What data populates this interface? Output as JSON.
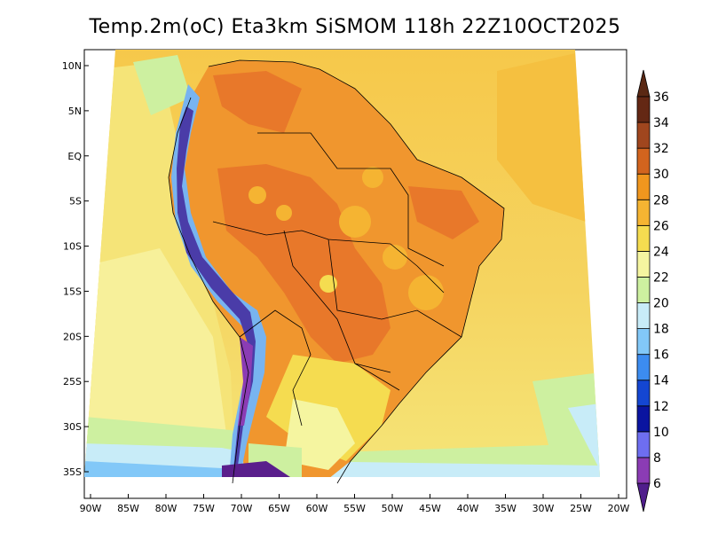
{
  "title": "Temp.2m(oC) Eta3km SiSMOM 118h 22Z10OCT2025",
  "variable": "Temp.2m",
  "units": "oC",
  "lat_ticks": [
    {
      "value": 10,
      "label": "10N"
    },
    {
      "value": 5,
      "label": "5N"
    },
    {
      "value": 0,
      "label": "EQ"
    },
    {
      "value": -5,
      "label": "5S"
    },
    {
      "value": -10,
      "label": "10S"
    },
    {
      "value": -15,
      "label": "15S"
    },
    {
      "value": -20,
      "label": "20S"
    },
    {
      "value": -25,
      "label": "25S"
    },
    {
      "value": -30,
      "label": "30S"
    },
    {
      "value": -35,
      "label": "35S"
    }
  ],
  "lon_ticks": [
    {
      "value": -90,
      "label": "90W"
    },
    {
      "value": -85,
      "label": "85W"
    },
    {
      "value": -80,
      "label": "80W"
    },
    {
      "value": -75,
      "label": "75W"
    },
    {
      "value": -70,
      "label": "70W"
    },
    {
      "value": -65,
      "label": "65W"
    },
    {
      "value": -60,
      "label": "60W"
    },
    {
      "value": -55,
      "label": "55W"
    },
    {
      "value": -50,
      "label": "50W"
    },
    {
      "value": -45,
      "label": "45W"
    },
    {
      "value": -40,
      "label": "40W"
    },
    {
      "value": -35,
      "label": "35W"
    },
    {
      "value": -30,
      "label": "30W"
    },
    {
      "value": -25,
      "label": "25W"
    },
    {
      "value": -20,
      "label": "20W"
    }
  ],
  "colorbar": {
    "labels": [
      "6",
      "8",
      "10",
      "12",
      "14",
      "16",
      "18",
      "20",
      "22",
      "24",
      "26",
      "28",
      "30",
      "32",
      "34",
      "36"
    ],
    "colors": [
      "#5a1f8c",
      "#8b3cb4",
      "#6e6ef0",
      "#0a14a0",
      "#1446d2",
      "#3c8cf0",
      "#82c8f8",
      "#c8ecf8",
      "#cdf0a0",
      "#f5f5a0",
      "#f5dc50",
      "#f5b432",
      "#f0961e",
      "#d2641e",
      "#a0461e",
      "#642814"
    ],
    "low_color": "#501e8c",
    "high_color": "#5a2814"
  },
  "colors": {
    "ocean_warm": "#f5c040",
    "ocean_mid": "#f5e170",
    "ocean_cool": "#f7f59a",
    "land_hot": "#e8782a",
    "land_warm": "#f0962e",
    "andes_cold": "#4a3ca8",
    "andes_cool": "#78b4f0",
    "south_cool": "#c8ecf8",
    "boundary": "#000000"
  }
}
